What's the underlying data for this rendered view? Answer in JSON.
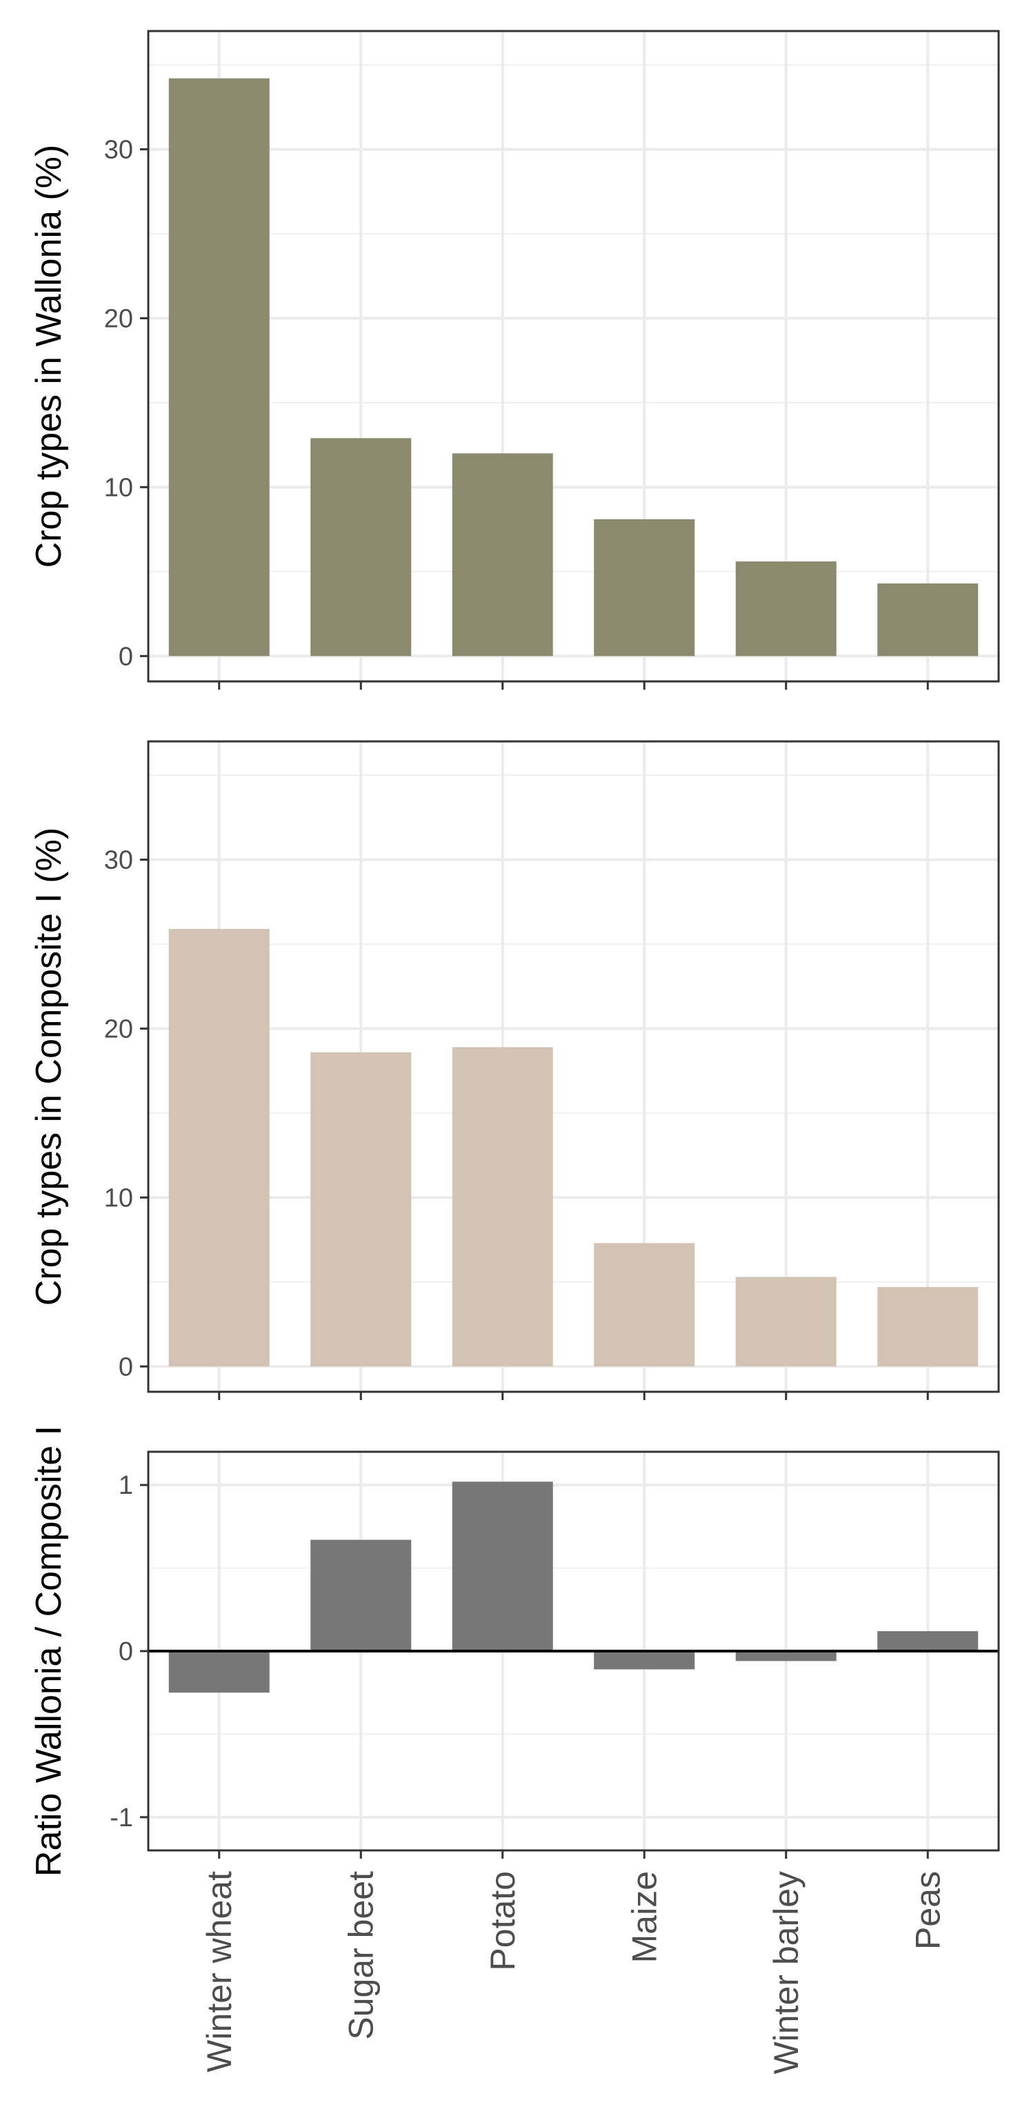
{
  "chart_data": [
    {
      "type": "bar",
      "panel": "top",
      "categories": [
        "Winter wheat",
        "Sugar beet",
        "Potato",
        "Maize",
        "Winter barley",
        "Peas"
      ],
      "values": [
        34.2,
        12.9,
        12.0,
        8.1,
        5.6,
        4.3
      ],
      "ylabel": "Crop types in Wallonia (%)",
      "ylim": [
        -1.5,
        37.0
      ],
      "yticks": [
        0,
        10,
        20,
        30
      ],
      "ytick_labels": [
        "0",
        "10",
        "20",
        "30"
      ],
      "grid": true,
      "bar_color": "#8c8a6e",
      "show_x_labels": false
    },
    {
      "type": "bar",
      "panel": "middle",
      "categories": [
        "Winter wheat",
        "Sugar beet",
        "Potato",
        "Maize",
        "Winter barley",
        "Peas"
      ],
      "values": [
        25.9,
        18.6,
        18.9,
        7.3,
        5.3,
        4.7
      ],
      "ylabel": "Crop types in Composite I (%)",
      "ylim": [
        -1.5,
        37.0
      ],
      "yticks": [
        0,
        10,
        20,
        30
      ],
      "ytick_labels": [
        "0",
        "10",
        "20",
        "30"
      ],
      "grid": true,
      "bar_color": "#d3c3b4",
      "show_x_labels": false
    },
    {
      "type": "bar",
      "panel": "bottom",
      "categories": [
        "Winter wheat",
        "Sugar beet",
        "Potato",
        "Maize",
        "Winter barley",
        "Peas"
      ],
      "values": [
        -0.25,
        0.67,
        1.02,
        -0.11,
        -0.06,
        0.12
      ],
      "ylabel": "Ratio Wallonia / Composite I",
      "ylim": [
        -1.2,
        1.2
      ],
      "yticks": [
        -1,
        0,
        1
      ],
      "ytick_labels": [
        "-1",
        "0",
        "1"
      ],
      "grid": true,
      "zero_line": true,
      "bar_color": "#777777",
      "show_x_labels": true
    }
  ]
}
